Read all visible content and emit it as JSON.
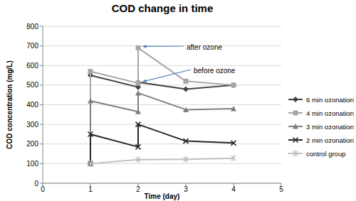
{
  "chart_data": {
    "type": "line",
    "title": "COD change in time",
    "x_label": "Time (day)",
    "y_label": "COD concentration (mg/L)",
    "xlim": [
      0,
      5
    ],
    "xticks": [
      0,
      1,
      2,
      3,
      4,
      5
    ],
    "ylim": [
      0,
      800
    ],
    "yticks": [
      0,
      100,
      200,
      300,
      400,
      500,
      600,
      700,
      800
    ],
    "grid": true,
    "legend": "right",
    "series": [
      {
        "name": "6 min ozonation",
        "color": "#404040",
        "marker": "diamond",
        "x": [
          1,
          1,
          2,
          2,
          3,
          4
        ],
        "values": [
          100,
          550,
          490,
          515,
          480,
          500
        ]
      },
      {
        "name": "4 min ozonation",
        "color": "#a6a6a6",
        "marker": "square",
        "x": [
          1,
          1,
          2,
          2,
          3,
          4
        ],
        "values": [
          100,
          570,
          510,
          690,
          520,
          500
        ]
      },
      {
        "name": "3 min ozonation",
        "color": "#7f7f7f",
        "marker": "triangle",
        "x": [
          1,
          1,
          2,
          2,
          3,
          4
        ],
        "values": [
          100,
          420,
          365,
          460,
          375,
          380
        ]
      },
      {
        "name": "2 min ozonation",
        "color": "#262626",
        "marker": "x",
        "x": [
          1,
          1,
          2,
          2,
          3,
          4
        ],
        "values": [
          100,
          250,
          185,
          300,
          215,
          205
        ]
      },
      {
        "name": "control group",
        "color": "#bfbfbf",
        "marker": "star",
        "x": [
          1,
          2,
          3,
          4
        ],
        "values": [
          100,
          120,
          122,
          128
        ]
      }
    ],
    "annotations": [
      {
        "text": "after ozone",
        "x": 2,
        "y": 690
      },
      {
        "text": "before ozone",
        "x": 2,
        "y": 510
      }
    ]
  }
}
